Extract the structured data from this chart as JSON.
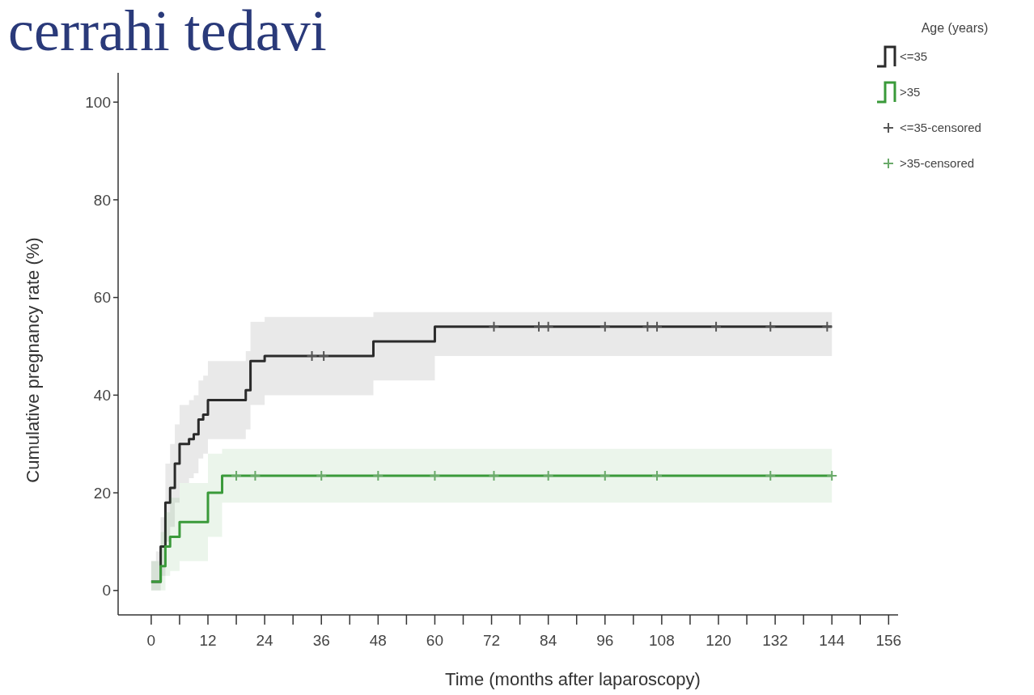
{
  "chart_data": {
    "type": "step",
    "title": "cerrahi tedavi",
    "xlabel": "Time (months after laparoscopy)",
    "ylabel": "Cumulative pregnancy rate (%)",
    "legend_title": "Age (years)",
    "legend": "top right",
    "grid": false,
    "xlim": [
      -7,
      158
    ],
    "xticks": [
      0,
      {
        "value": 6,
        "label": null
      },
      12,
      {
        "value": 18,
        "label": null
      },
      24,
      {
        "value": 30,
        "label": null
      },
      36,
      {
        "value": 42,
        "label": null
      },
      48,
      {
        "value": 54,
        "label": null
      },
      60,
      {
        "value": 66,
        "label": null
      },
      72,
      {
        "value": 78,
        "label": null
      },
      84,
      {
        "value": 90,
        "label": null
      },
      96,
      {
        "value": 102,
        "label": null
      },
      108,
      {
        "value": 114,
        "label": null
      },
      120,
      {
        "value": 126,
        "label": null
      },
      132,
      {
        "value": 138,
        "label": null
      },
      144,
      {
        "value": 150,
        "label": null
      },
      156
    ],
    "ylim": [
      -5,
      106
    ],
    "yticks": [
      0,
      20,
      40,
      60,
      80,
      100
    ],
    "series": [
      {
        "name": "<=35",
        "color": "#2b2b2b",
        "x": [
          0,
          1,
          2,
          3,
          4,
          5,
          6,
          8,
          9,
          10,
          11,
          12,
          19,
          20,
          21,
          24,
          47,
          60,
          144
        ],
        "values": [
          1.8,
          1.8,
          9,
          18,
          21,
          26,
          30,
          31,
          32,
          35,
          36,
          39,
          39,
          41,
          47,
          48,
          51,
          54,
          54
        ],
        "lower": [
          0,
          0,
          3,
          10,
          13,
          18,
          22,
          23,
          24,
          27,
          28,
          31,
          31,
          33,
          38,
          40,
          43,
          48,
          48
        ],
        "upper": [
          6,
          8,
          15,
          26,
          30,
          34,
          38,
          39,
          40,
          43,
          44,
          47,
          47,
          49,
          55,
          56,
          57,
          57,
          57
        ]
      },
      {
        "name": ">35",
        "color": "#3a9a3a",
        "x": [
          0,
          2,
          3,
          4,
          6,
          12,
          15,
          144
        ],
        "values": [
          1.8,
          5,
          9,
          11,
          14,
          20,
          23.5,
          23.5
        ],
        "lower": [
          0,
          0,
          3,
          4,
          6,
          11,
          18,
          18
        ],
        "upper": [
          6,
          12,
          16,
          19,
          22,
          28,
          29,
          29
        ]
      },
      {
        "name": "<=35-censored",
        "type": "scatter",
        "marker": "cross",
        "color": "#555555",
        "x": [
          34,
          36.5,
          72.5,
          82,
          84,
          96,
          105,
          107,
          119.5,
          131,
          143
        ],
        "values": [
          48,
          48,
          54,
          54,
          54,
          54,
          54,
          54,
          54,
          54,
          54
        ]
      },
      {
        "name": ">35-censored",
        "type": "scatter",
        "marker": "cross",
        "color": "#6aaa6a",
        "x": [
          18,
          22,
          36,
          48,
          60,
          72.5,
          84,
          96,
          107,
          131,
          144
        ],
        "values": [
          23.5,
          23.5,
          23.5,
          23.5,
          23.5,
          23.5,
          23.5,
          23.5,
          23.5,
          23.5,
          23.5
        ]
      }
    ]
  }
}
